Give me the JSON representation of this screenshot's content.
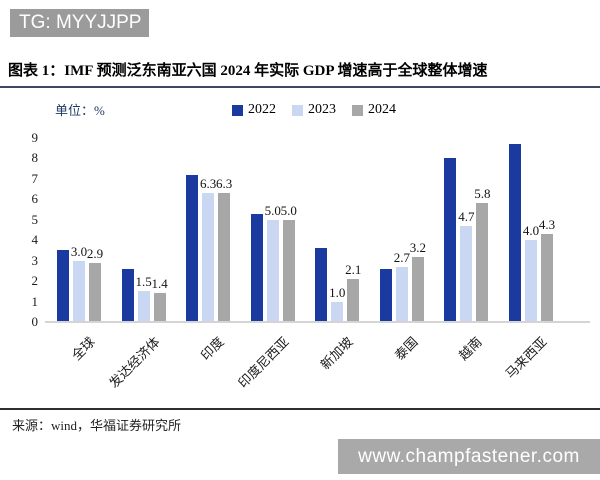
{
  "watermarks": {
    "telegram": "TG: MYYJJPP",
    "website": "www.champfastener.com"
  },
  "figure": {
    "title": "图表 1：IMF 预测泛东南亚六国 2024 年实际 GDP 增速高于全球整体增速",
    "unit_label": "单位：%",
    "source": "来源：wind，华福证券研究所"
  },
  "colors": {
    "series_2022": "#1a3aa0",
    "series_2023": "#c9d7f2",
    "series_2024": "#a7a7a7",
    "banner_top": "#9b9b9b",
    "banner_bottom": "#a9a9a9",
    "title_rule": "#3c4961",
    "source_rule": "#2f2f2f",
    "axis_line": "#d4d4d4"
  },
  "chart_data": {
    "type": "bar",
    "title": "IMF 预测泛东南亚六国 2024 年实际 GDP 增速高于全球整体增速",
    "unit": "%",
    "categories": [
      "全球",
      "发达经济体",
      "印度",
      "印度尼西亚",
      "新加坡",
      "泰国",
      "越南",
      "马来西亚"
    ],
    "series": [
      {
        "name": "2022",
        "color": "#1a3aa0",
        "show_value_labels": false,
        "values": [
          3.5,
          2.6,
          7.2,
          5.3,
          3.6,
          2.6,
          8.0,
          8.7
        ]
      },
      {
        "name": "2023",
        "color": "#c9d7f2",
        "show_value_labels": true,
        "values": [
          3.0,
          1.5,
          6.3,
          5.0,
          1.0,
          2.7,
          4.7,
          4.0
        ]
      },
      {
        "name": "2024",
        "color": "#a7a7a7",
        "show_value_labels": true,
        "values": [
          2.9,
          1.4,
          6.3,
          5.0,
          2.1,
          3.2,
          5.8,
          4.3
        ]
      }
    ],
    "ylim": [
      0,
      9
    ],
    "yticks": [
      0,
      1,
      2,
      3,
      4,
      5,
      6,
      7,
      8,
      9
    ],
    "legend_position": "top-center",
    "grid": false
  }
}
